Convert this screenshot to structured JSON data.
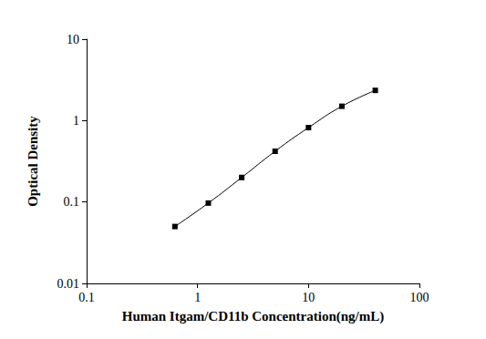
{
  "chart_data": {
    "type": "line",
    "x_label": "Human Itgam/CD11b Concentration(ng/mL)",
    "y_label": "Optical Density",
    "x": [
      0.625,
      1.25,
      2.5,
      5,
      10,
      20,
      40
    ],
    "values": [
      0.05,
      0.097,
      0.2,
      0.42,
      0.82,
      1.5,
      2.35
    ],
    "color": "#000000",
    "marker": "square",
    "log": true,
    "grid": false,
    "xlim": [
      0.1,
      100
    ],
    "xticks": [
      0.1,
      1,
      10,
      100
    ],
    "ylim": [
      0.01,
      10
    ],
    "yticks": [
      0.01,
      0.1,
      1,
      10
    ]
  }
}
